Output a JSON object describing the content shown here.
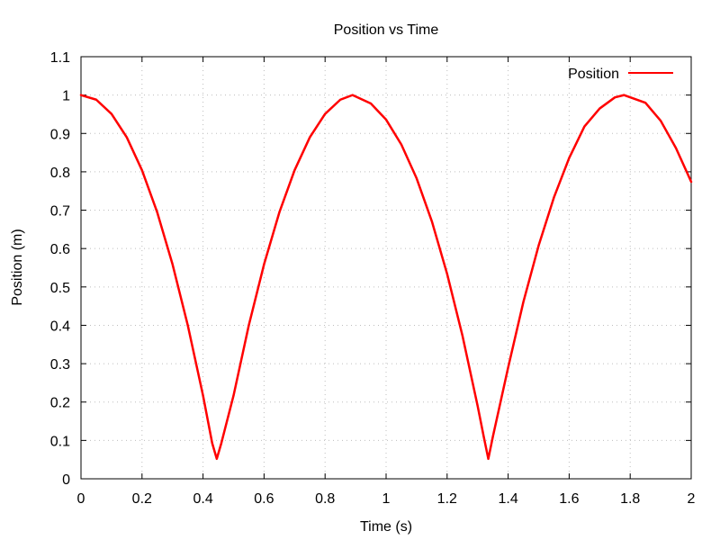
{
  "chart_data": {
    "type": "line",
    "title": "Position vs Time",
    "xlabel": "Time (s)",
    "ylabel": "Position (m)",
    "xlim": [
      0,
      2
    ],
    "ylim": [
      0,
      1.1
    ],
    "xticks": [
      "0",
      "0.2",
      "0.4",
      "0.6",
      "0.8",
      "1",
      "1.2",
      "1.4",
      "1.6",
      "1.8",
      "2"
    ],
    "yticks": [
      "0",
      "0.1",
      "0.2",
      "0.3",
      "0.4",
      "0.5",
      "0.6",
      "0.7",
      "0.8",
      "0.9",
      "1",
      "1.1"
    ],
    "grid": true,
    "legend_position": "top-right",
    "series": [
      {
        "name": "Position",
        "color": "#ff0000",
        "points": [
          [
            0.0,
            1.0
          ],
          [
            0.05,
            0.988
          ],
          [
            0.1,
            0.951
          ],
          [
            0.15,
            0.89
          ],
          [
            0.2,
            0.804
          ],
          [
            0.25,
            0.694
          ],
          [
            0.3,
            0.559
          ],
          [
            0.35,
            0.4
          ],
          [
            0.4,
            0.217
          ],
          [
            0.43,
            0.093
          ],
          [
            0.445,
            0.052
          ],
          [
            0.46,
            0.093
          ],
          [
            0.5,
            0.217
          ],
          [
            0.55,
            0.4
          ],
          [
            0.6,
            0.559
          ],
          [
            0.65,
            0.694
          ],
          [
            0.7,
            0.804
          ],
          [
            0.75,
            0.89
          ],
          [
            0.8,
            0.951
          ],
          [
            0.85,
            0.988
          ],
          [
            0.89,
            1.0
          ],
          [
            0.95,
            0.978
          ],
          [
            1.0,
            0.936
          ],
          [
            1.05,
            0.871
          ],
          [
            1.1,
            0.783
          ],
          [
            1.15,
            0.671
          ],
          [
            1.2,
            0.534
          ],
          [
            1.25,
            0.374
          ],
          [
            1.3,
            0.19
          ],
          [
            1.32,
            0.11
          ],
          [
            1.335,
            0.052
          ],
          [
            1.35,
            0.11
          ],
          [
            1.4,
            0.29
          ],
          [
            1.45,
            0.461
          ],
          [
            1.5,
            0.608
          ],
          [
            1.55,
            0.733
          ],
          [
            1.6,
            0.836
          ],
          [
            1.65,
            0.918
          ],
          [
            1.7,
            0.965
          ],
          [
            1.75,
            0.994
          ],
          [
            1.78,
            1.0
          ],
          [
            1.85,
            0.98
          ],
          [
            1.9,
            0.933
          ],
          [
            1.95,
            0.862
          ],
          [
            2.0,
            0.774
          ]
        ]
      }
    ]
  }
}
